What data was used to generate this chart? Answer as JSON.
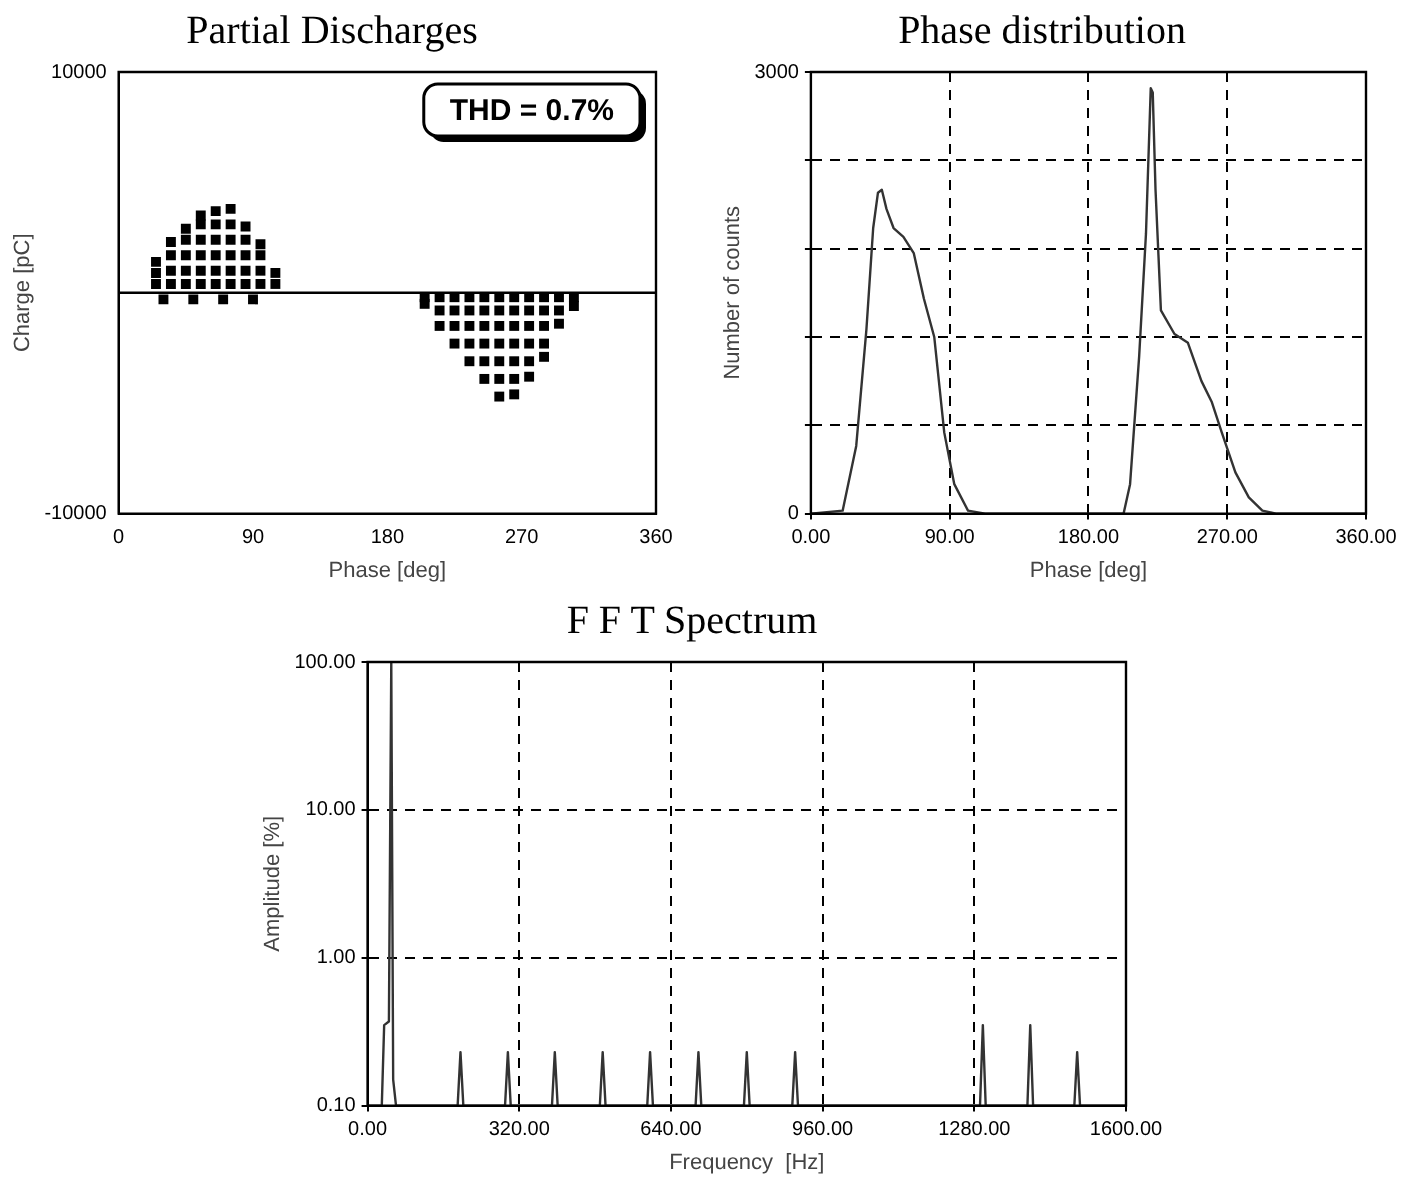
{
  "chart_data": [
    {
      "type": "scatter",
      "title": "Partial Discharges",
      "xlabel": "Phase [deg]",
      "ylabel": "Charge [pC]",
      "color": "#000000",
      "marker": "square",
      "x": [
        25,
        25,
        25,
        35,
        35,
        35,
        35,
        45,
        45,
        45,
        45,
        45,
        55,
        55,
        55,
        55,
        55,
        55,
        65,
        65,
        65,
        65,
        65,
        65,
        75,
        75,
        75,
        75,
        75,
        75,
        85,
        85,
        85,
        85,
        85,
        95,
        95,
        95,
        95,
        105,
        105,
        30,
        50,
        70,
        90,
        205,
        205,
        215,
        215,
        215,
        225,
        225,
        225,
        225,
        235,
        235,
        235,
        235,
        235,
        245,
        245,
        245,
        245,
        245,
        245,
        255,
        255,
        255,
        255,
        255,
        255,
        255,
        265,
        265,
        265,
        265,
        265,
        265,
        265,
        275,
        275,
        275,
        275,
        275,
        275,
        285,
        285,
        285,
        285,
        285,
        295,
        295,
        295,
        305,
        305
      ],
      "values": [
        400,
        900,
        1400,
        400,
        1000,
        1700,
        2300,
        400,
        1000,
        1700,
        2400,
        2900,
        400,
        1000,
        1700,
        2400,
        3100,
        3500,
        400,
        1000,
        1700,
        2400,
        3100,
        3700,
        400,
        1000,
        1700,
        2400,
        3100,
        3800,
        400,
        1000,
        1700,
        2400,
        3000,
        400,
        1000,
        1700,
        2200,
        400,
        900,
        -300,
        -300,
        -300,
        -300,
        -200,
        -500,
        -200,
        -800,
        -1500,
        -200,
        -800,
        -1500,
        -2300,
        -200,
        -800,
        -1500,
        -2300,
        -3100,
        -200,
        -800,
        -1500,
        -2300,
        -3100,
        -3900,
        -200,
        -800,
        -1500,
        -2300,
        -3100,
        -3900,
        -4700,
        -200,
        -800,
        -1500,
        -2300,
        -3100,
        -3900,
        -4600,
        -200,
        -800,
        -1500,
        -2300,
        -3100,
        -3800,
        -200,
        -800,
        -1500,
        -2300,
        -2900,
        -200,
        -800,
        -1400,
        -200,
        -600
      ],
      "xlim": [
        0,
        360
      ],
      "xticks": [
        0,
        90,
        180,
        270,
        360
      ],
      "ylim": [
        -10000,
        10000
      ],
      "yticks": [
        -10000,
        10000
      ],
      "grid": false,
      "ref_lines": [
        {
          "axis": "y",
          "value": 0
        }
      ],
      "annotations": [
        "THD = 0.7%"
      ]
    },
    {
      "type": "line",
      "title": "Phase distribution",
      "xlabel": "Phase [deg]",
      "ylabel": "Number of counts",
      "color": "#333333",
      "x": [
        0,
        20.6,
        29.4,
        36,
        40.4,
        43.5,
        46,
        49,
        53.6,
        60,
        66.7,
        73.3,
        80,
        86.5,
        93,
        101.9,
        113,
        202.8,
        207,
        212.9,
        217.3,
        220.4,
        221.7,
        223.5,
        227,
        235.8,
        244.5,
        253.3,
        259.9,
        266.5,
        275.3,
        284,
        292.8,
        301.6,
        360
      ],
      "values": [
        0,
        20,
        460,
        1250,
        1940,
        2180,
        2200,
        2070,
        1940,
        1880,
        1770,
        1460,
        1200,
        550,
        200,
        20,
        0,
        0,
        200,
        1070,
        1900,
        2890,
        2860,
        2200,
        1380,
        1220,
        1160,
        900,
        760,
        550,
        280,
        110,
        20,
        0,
        0
      ],
      "xlim": [
        0,
        360
      ],
      "xticks": [
        {
          "value": 0,
          "label": "0.00"
        },
        {
          "value": 90,
          "label": "90.00"
        },
        {
          "value": 180,
          "label": "180.00"
        },
        {
          "value": 270,
          "label": "270.00"
        },
        {
          "value": 360,
          "label": "360.00"
        }
      ],
      "ylim": [
        0,
        3000
      ],
      "yticks": [
        0,
        {
          "value": 600,
          "label": null
        },
        {
          "value": 1200,
          "label": null
        },
        {
          "value": 1800,
          "label": null
        },
        {
          "value": 2400,
          "label": null
        },
        3000
      ],
      "grid": true
    },
    {
      "type": "line",
      "title": "F F T Spectrum",
      "xlabel": "Frequency  [Hz]",
      "ylabel": "Amplitude [%]",
      "color": "#333333",
      "log": "y",
      "x": [
        0,
        30,
        35,
        45,
        50,
        54,
        60,
        190,
        196,
        202,
        290,
        296,
        302,
        389,
        395,
        401,
        490,
        496,
        502,
        590,
        596,
        602,
        692,
        698,
        704,
        794,
        800,
        806,
        896,
        902,
        908,
        1292,
        1298,
        1304,
        1392,
        1398,
        1404,
        1491,
        1497,
        1503,
        1600
      ],
      "values": [
        0.1,
        0.1,
        0.35,
        0.37,
        100,
        0.15,
        0.1,
        0.1,
        0.23,
        0.1,
        0.1,
        0.23,
        0.1,
        0.1,
        0.23,
        0.1,
        0.1,
        0.23,
        0.1,
        0.1,
        0.23,
        0.1,
        0.1,
        0.23,
        0.1,
        0.1,
        0.23,
        0.1,
        0.1,
        0.23,
        0.1,
        0.1,
        0.35,
        0.1,
        0.1,
        0.35,
        0.1,
        0.1,
        0.23,
        0.1,
        0.1
      ],
      "xlim": [
        0,
        1600
      ],
      "xticks": [
        {
          "value": 0,
          "label": "0.00"
        },
        {
          "value": 320,
          "label": "320.00"
        },
        {
          "value": 640,
          "label": "640.00"
        },
        {
          "value": 960,
          "label": "960.00"
        },
        {
          "value": 1280,
          "label": "1280.00"
        },
        {
          "value": 1600,
          "label": "1600.00"
        }
      ],
      "ylim": [
        0.1,
        100
      ],
      "yticks": [
        {
          "value": 0.1,
          "label": "0.10"
        },
        {
          "value": 1,
          "label": "1.00"
        },
        {
          "value": 10,
          "label": "10.00"
        },
        {
          "value": 100,
          "label": "100.00"
        }
      ],
      "grid": true
    }
  ]
}
